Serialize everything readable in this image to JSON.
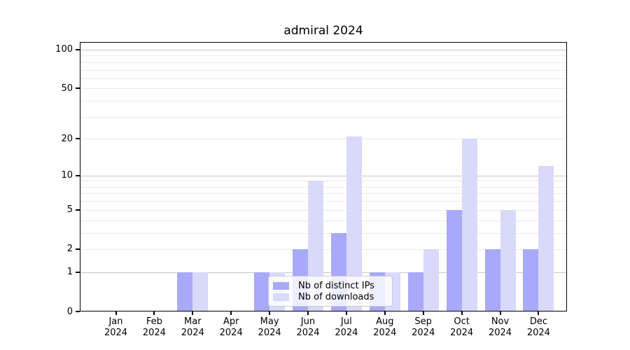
{
  "title": "admiral 2024",
  "chart_data": {
    "type": "bar",
    "title": "admiral 2024",
    "categories": [
      "Jan 2024",
      "Feb 2024",
      "Mar 2024",
      "Apr 2024",
      "May 2024",
      "Jun 2024",
      "Jul 2024",
      "Aug 2024",
      "Sep 2024",
      "Oct 2024",
      "Nov 2024",
      "Dec 2024"
    ],
    "series": [
      {
        "name": "Nb of distinct IPs",
        "color": "#a9a9f9",
        "values": [
          0,
          0,
          1,
          0,
          1,
          2,
          3,
          1,
          1,
          5,
          2,
          2
        ]
      },
      {
        "name": "Nb of downloads",
        "color": "#d9d9fb",
        "values": [
          0,
          0,
          1,
          0,
          1,
          9,
          21,
          1,
          2,
          20,
          5,
          12
        ]
      }
    ],
    "xlabel": "",
    "ylabel": "",
    "yscale": "log1p",
    "ylim": [
      0,
      115
    ],
    "ytick_values": [
      0,
      1,
      2,
      5,
      10,
      20,
      50,
      100
    ],
    "ytick_labels": [
      "0",
      "1",
      "2",
      "5",
      "10",
      "20",
      "50",
      "100"
    ],
    "major_gridline_values": [
      1,
      10,
      100
    ],
    "minor_gridline_values": [
      2,
      3,
      4,
      5,
      6,
      7,
      8,
      9,
      20,
      30,
      40,
      50,
      60,
      70,
      80,
      90
    ],
    "grid": "horizontal",
    "legend_position": "inside-bottom-center",
    "colors": {
      "background": "#ffffff",
      "spine": "#000000",
      "major_grid": "#c6c6c6",
      "minor_grid": "#ebebeb",
      "legend_border": "#cccccc",
      "legend_background": "rgba(255,255,255,0.8)"
    }
  }
}
